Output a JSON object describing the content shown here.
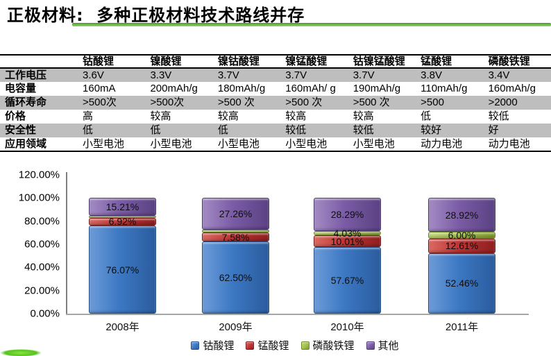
{
  "title": "正极材料:  多种正极材料技术路线并存",
  "accent_color": "#6FBF4B",
  "table": {
    "col_headers": [
      "",
      "钴酸锂",
      "镍酸锂",
      "镍钴酸锂",
      "镍锰酸锂",
      "钴镍锰酸锂",
      "锰酸锂",
      "磷酸铁锂"
    ],
    "rows": [
      {
        "label": "工作电压",
        "shaded": true,
        "cells": [
          "3.6V",
          "3.3V",
          "3.7V",
          "3.7V",
          "3.7V",
          "3.8V",
          "3.4V"
        ]
      },
      {
        "label": "电容量",
        "shaded": false,
        "cells": [
          "160mA",
          "200mAh/g",
          "180mAh/g",
          "160mAh/ g",
          "190mAh/g",
          "110mAh/g",
          "160mAh/g"
        ]
      },
      {
        "label": "循环寿命",
        "shaded": true,
        "cells": [
          ">500次",
          ">500次",
          ">500 次",
          ">500 次",
          ">500 次",
          ">500",
          ">2000"
        ]
      },
      {
        "label": "价格",
        "shaded": false,
        "cells": [
          "高",
          "较高",
          "较高",
          "较高",
          "较高",
          "低",
          "较低"
        ]
      },
      {
        "label": "安全性",
        "shaded": true,
        "cells": [
          "低",
          "低",
          "低",
          "较低",
          "较低",
          "较好",
          "好"
        ]
      },
      {
        "label": "应用领域",
        "shaded": false,
        "cells": [
          "小型电池",
          "小型电池",
          "小型电池",
          "小型电池",
          "小型电池",
          "动力电池",
          "动力电池"
        ]
      }
    ]
  },
  "chart_data": {
    "type": "bar",
    "stacked": true,
    "categories": [
      "2008年",
      "2009年",
      "2010年",
      "2011年"
    ],
    "series": [
      {
        "name": "钴酸锂",
        "color": "#3C78C3",
        "color_light": "#6C9BD8",
        "color_dark": "#2B5C9E",
        "color_edge": "#24508C",
        "values": [
          76.07,
          62.5,
          57.67,
          52.46
        ],
        "labels": [
          "76.07%",
          "62.50%",
          "57.67%",
          "52.46%"
        ]
      },
      {
        "name": "锰酸锂",
        "color": "#BE3434",
        "color_light": "#D96A62",
        "color_dark": "#8F1F1F",
        "color_edge": "#7E1B1B",
        "values": [
          6.92,
          7.58,
          10.01,
          12.61
        ],
        "labels": [
          "6.92%",
          "7.58%",
          "10.01%",
          "12.61%"
        ]
      },
      {
        "name": "磷酸铁锂",
        "color": "#A3BF4C",
        "color_light": "#C3D77A",
        "color_dark": "#7E9A2C",
        "color_edge": "#6F8A25",
        "values": [
          1.8,
          2.66,
          4.03,
          6.0
        ],
        "labels": [
          "",
          "",
          "4.03%",
          "6.00%"
        ]
      },
      {
        "name": "其他",
        "color": "#7B5CA6",
        "color_light": "#A38BC4",
        "color_dark": "#5B4283",
        "color_edge": "#4F3973",
        "values": [
          15.21,
          27.26,
          28.29,
          28.92
        ],
        "labels": [
          "15.21%",
          "27.26%",
          "28.29%",
          "28.92%"
        ]
      }
    ],
    "y_ticks": [
      "120.00%",
      "100.00%",
      "80.00%",
      "60.00%",
      "40.00%",
      "20.00%",
      "0.00%"
    ],
    "ylim": [
      0,
      120
    ],
    "grid": false,
    "legend_position": "bottom"
  }
}
